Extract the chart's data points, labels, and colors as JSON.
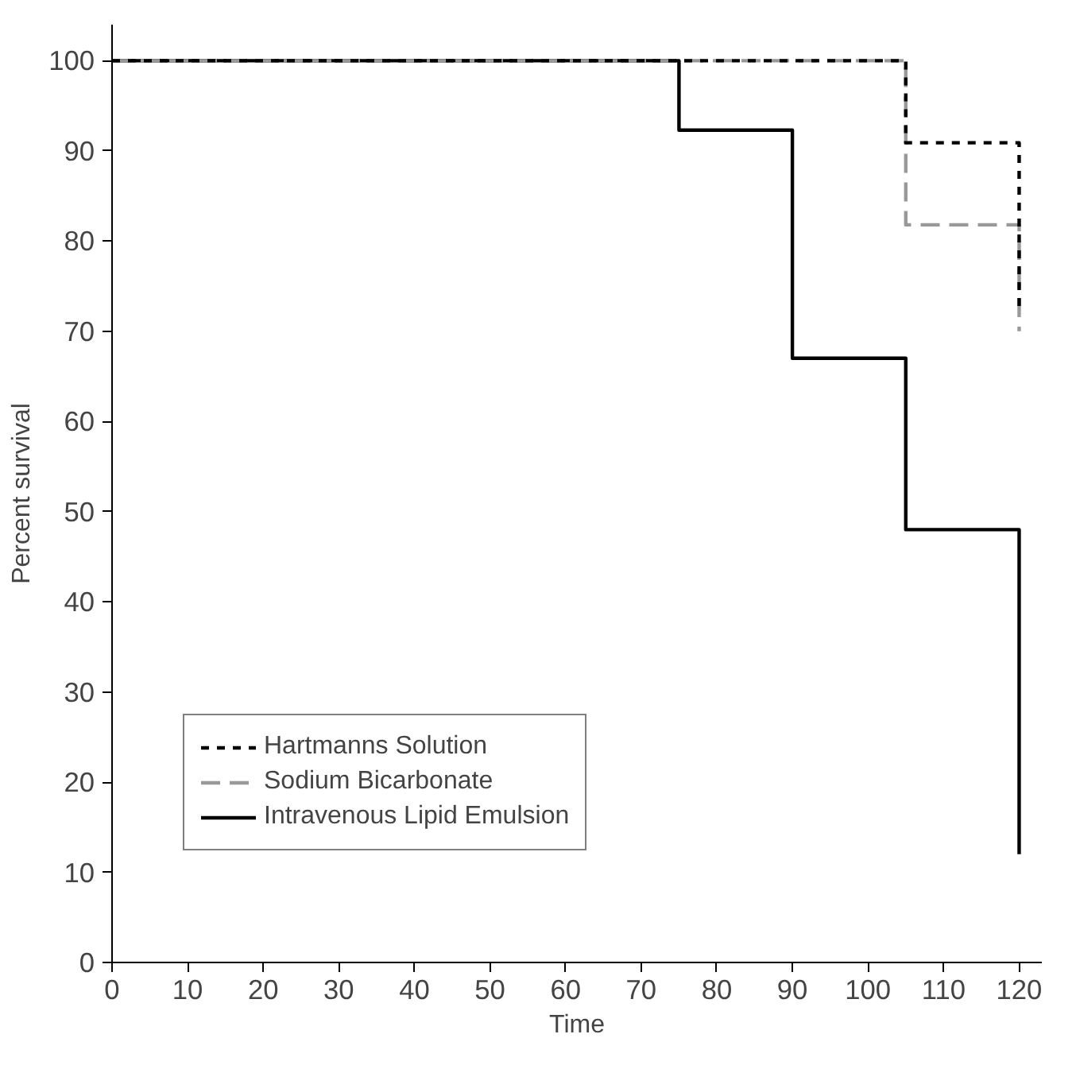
{
  "chart_data": {
    "type": "step",
    "xlabel": "Time",
    "ylabel": "Percent survival",
    "xlim": [
      0,
      123
    ],
    "ylim": [
      0,
      104
    ],
    "xticks": [
      0,
      10,
      20,
      30,
      40,
      50,
      60,
      70,
      80,
      90,
      100,
      110,
      120
    ],
    "yticks": [
      0,
      10,
      20,
      30,
      40,
      50,
      60,
      70,
      80,
      90,
      100
    ],
    "grid": false,
    "legend": "bottom left",
    "marker": "none",
    "series": [
      {
        "name": "Hartmanns Solution",
        "color": "#000000",
        "line_style": "dotted",
        "x": [
          0,
          105,
          120
        ],
        "values": [
          100,
          90.9,
          72.7
        ]
      },
      {
        "name": "Sodium Bicarbonate",
        "color": "#999999",
        "line_style": "dashed",
        "x": [
          0,
          105,
          120
        ],
        "values": [
          100,
          81.8,
          70
        ]
      },
      {
        "name": "Intravenous Lipid Emulsion",
        "color": "#000000",
        "line_style": "solid",
        "x": [
          0,
          75,
          90,
          105,
          120
        ],
        "values": [
          100,
          92.3,
          67,
          48,
          12
        ]
      }
    ]
  }
}
